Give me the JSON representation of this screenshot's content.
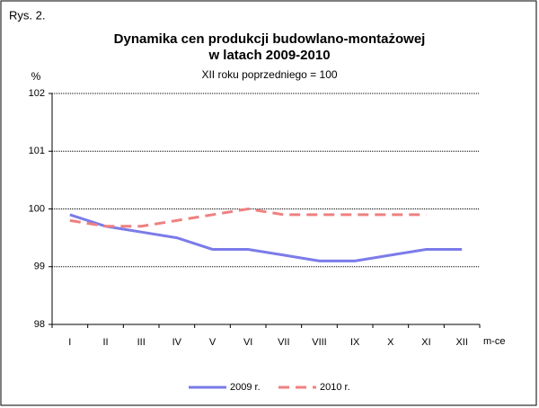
{
  "chart_data": {
    "type": "line",
    "figure_label": "Rys. 2.",
    "title": [
      "Dynamika cen produkcji budowlano-montażowej",
      "w latach 2009-2010"
    ],
    "subtitle": "XII roku poprzedniego = 100",
    "y_label": "%",
    "x_label": "m-ce",
    "categories": [
      "I",
      "II",
      "III",
      "IV",
      "V",
      "VI",
      "VII",
      "VIII",
      "IX",
      "X",
      "XI",
      "XII"
    ],
    "series": [
      {
        "name": "2009 r.",
        "color": "#7b7bea",
        "dash": false,
        "values": [
          99.9,
          99.7,
          99.6,
          99.5,
          99.3,
          99.3,
          99.2,
          99.1,
          99.1,
          99.2,
          99.3,
          99.3
        ]
      },
      {
        "name": "2010 r.",
        "color": "#ef8080",
        "dash": true,
        "values": [
          99.8,
          99.7,
          99.7,
          99.8,
          99.9,
          100.0,
          99.9,
          99.9,
          99.9,
          99.9,
          99.9,
          null
        ]
      }
    ],
    "ylim": [
      98,
      102
    ],
    "yticks": [
      98,
      99,
      100,
      101,
      102
    ],
    "grid": true,
    "legend": "bottom"
  }
}
